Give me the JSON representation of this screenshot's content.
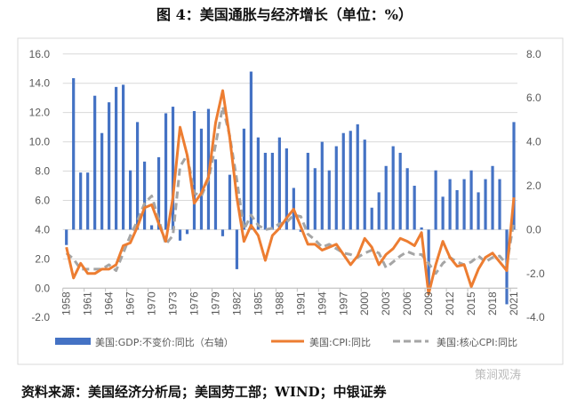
{
  "title": "图 4：美国通胀与经济增长（单位：%）",
  "source": "资料来源：美国经济分析局；美国劳工部；WIND；中银证券",
  "watermark": "策涧观涛",
  "colors": {
    "gdp": "#4472C4",
    "cpi": "#ED7D31",
    "core": "#A5A5A5"
  },
  "chart_data": {
    "type": "bar+line",
    "title": "图 4：美国通胀与经济增长（单位：%）",
    "left_axis": {
      "range": [
        -2,
        16
      ],
      "ticks": [
        "16.0",
        "14.0",
        "12.0",
        "10.0",
        "8.0",
        "6.0",
        "4.0",
        "2.0",
        "0.0",
        "-2.0"
      ]
    },
    "right_axis": {
      "range": [
        -4,
        8
      ],
      "ticks": [
        "8.0",
        "6.0",
        "4.0",
        "2.0",
        "0.0",
        "-2.0",
        "-4.0"
      ]
    },
    "x_tick_labels": [
      "1958",
      "1961",
      "1964",
      "1967",
      "1970",
      "1973",
      "1976",
      "1979",
      "1982",
      "1985",
      "1988",
      "1991",
      "1994",
      "1997",
      "2000",
      "2003",
      "2006",
      "2009",
      "2012",
      "2015",
      "2018",
      "2021"
    ],
    "x": [
      1958,
      1959,
      1960,
      1961,
      1962,
      1963,
      1964,
      1965,
      1966,
      1967,
      1968,
      1969,
      1970,
      1971,
      1972,
      1973,
      1974,
      1975,
      1976,
      1977,
      1978,
      1979,
      1980,
      1981,
      1982,
      1983,
      1984,
      1985,
      1986,
      1987,
      1988,
      1989,
      1990,
      1991,
      1992,
      1993,
      1994,
      1995,
      1996,
      1997,
      1998,
      1999,
      2000,
      2001,
      2002,
      2003,
      2004,
      2005,
      2006,
      2007,
      2008,
      2009,
      2010,
      2011,
      2012,
      2013,
      2014,
      2015,
      2016,
      2017,
      2018,
      2019,
      2020,
      2021
    ],
    "series": [
      {
        "name": "美国:GDP:不变价:同比（右轴）",
        "type": "bar",
        "axis": "right",
        "values": [
          -0.7,
          6.9,
          2.6,
          2.6,
          6.1,
          4.4,
          5.8,
          6.5,
          6.6,
          2.7,
          4.9,
          3.1,
          0.2,
          3.3,
          5.3,
          5.6,
          -0.5,
          -0.2,
          5.4,
          4.6,
          5.5,
          3.2,
          -0.3,
          2.5,
          -1.8,
          4.6,
          7.2,
          4.2,
          3.5,
          3.5,
          4.2,
          3.7,
          1.9,
          -0.1,
          3.5,
          2.8,
          4.0,
          2.7,
          3.8,
          4.4,
          4.5,
          4.8,
          4.1,
          1.0,
          1.7,
          2.9,
          3.8,
          3.5,
          2.8,
          2.0,
          0.1,
          -2.6,
          2.7,
          1.5,
          2.3,
          1.8,
          2.3,
          2.7,
          1.7,
          2.3,
          2.9,
          2.3,
          -3.4,
          4.9
        ]
      },
      {
        "name": "美国:CPI:同比",
        "type": "line",
        "axis": "left",
        "values": [
          2.8,
          0.7,
          1.7,
          1.0,
          1.0,
          1.3,
          1.3,
          1.6,
          2.9,
          3.1,
          4.2,
          5.5,
          5.7,
          4.4,
          3.2,
          6.2,
          11.0,
          9.1,
          5.8,
          6.5,
          7.6,
          11.3,
          13.5,
          10.3,
          6.2,
          3.2,
          4.3,
          3.6,
          1.9,
          3.6,
          4.1,
          4.8,
          5.4,
          4.2,
          3.0,
          3.0,
          2.6,
          2.8,
          3.0,
          2.3,
          1.6,
          2.2,
          3.4,
          2.8,
          1.6,
          2.3,
          2.7,
          3.4,
          3.2,
          2.9,
          3.8,
          -0.4,
          1.6,
          3.2,
          2.1,
          1.5,
          1.6,
          0.1,
          1.3,
          2.1,
          2.4,
          1.8,
          1.2,
          6.2
        ]
      },
      {
        "name": "美国:核心CPI:同比",
        "type": "line",
        "dashed": true,
        "axis": "left",
        "values": [
          2.4,
          2.0,
          1.3,
          1.3,
          1.3,
          1.3,
          1.6,
          1.2,
          2.4,
          3.6,
          4.6,
          5.8,
          6.3,
          4.7,
          3.0,
          3.6,
          8.3,
          9.1,
          6.5,
          6.3,
          7.4,
          9.8,
          12.4,
          10.4,
          7.4,
          4.0,
          5.0,
          4.3,
          4.0,
          4.1,
          4.4,
          4.5,
          5.0,
          4.9,
          3.7,
          3.3,
          2.8,
          3.0,
          2.7,
          2.4,
          2.3,
          2.1,
          2.4,
          2.6,
          2.4,
          1.4,
          1.8,
          2.2,
          2.5,
          2.3,
          2.3,
          1.7,
          1.0,
          1.7,
          2.1,
          1.8,
          1.6,
          1.8,
          2.2,
          1.8,
          2.1,
          2.2,
          1.6,
          4.6
        ]
      }
    ],
    "legend_position": "bottom",
    "grid": true
  }
}
